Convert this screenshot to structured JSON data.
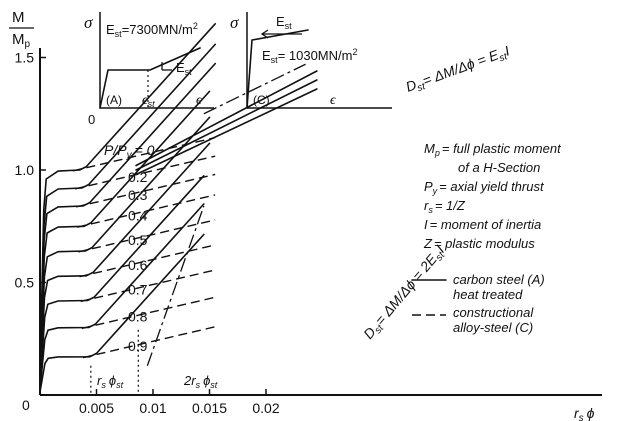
{
  "chart_data": {
    "type": "line",
    "title": "",
    "ylabel_num": "M",
    "ylabel_den": "M",
    "ylabel_den_sub": "p",
    "xlabel": "r",
    "xlabel_sub": "s",
    "xlabel_phi": "ϕ",
    "xlim": [
      0,
      0.025
    ],
    "ylim": [
      0,
      1.6
    ],
    "xticks": [
      0.005,
      0.01,
      0.015,
      0.02
    ],
    "xtick_labels": [
      "0.005",
      "0.01",
      "0.015",
      "0.02"
    ],
    "yticks": [
      0.5,
      1.0,
      1.5
    ],
    "ytick_labels": [
      "0.5",
      "1.0",
      "1.5"
    ],
    "origin_label": "0",
    "load_ratio_prefix": "P/P",
    "load_ratio_sub": "y",
    "load_ratio_eq": "= 0",
    "curve_labels": [
      "0.2",
      "0.3",
      "0.4",
      "0.5",
      "0.6",
      "0.7",
      "0.8",
      "0.9"
    ],
    "series": [
      {
        "p": 0.0,
        "plateau": 1.0,
        "x_sh": 0.0035,
        "xend": 0.0155
      },
      {
        "p": 0.2,
        "plateau": 0.92,
        "x_sh": 0.0037,
        "xend": 0.0155
      },
      {
        "p": 0.3,
        "plateau": 0.84,
        "x_sh": 0.0038,
        "xend": 0.0155
      },
      {
        "p": 0.4,
        "plateau": 0.75,
        "x_sh": 0.0039,
        "xend": 0.015
      },
      {
        "p": 0.5,
        "plateau": 0.64,
        "x_sh": 0.004,
        "xend": 0.015
      },
      {
        "p": 0.6,
        "plateau": 0.53,
        "x_sh": 0.0041,
        "xend": 0.015
      },
      {
        "p": 0.7,
        "plateau": 0.42,
        "x_sh": 0.0042,
        "xend": 0.0145
      },
      {
        "p": 0.8,
        "plateau": 0.3,
        "x_sh": 0.0043,
        "xend": 0.0145
      },
      {
        "p": 0.9,
        "plateau": 0.17,
        "x_sh": 0.0044,
        "xend": 0.0145
      }
    ],
    "hardening_slope_A": 56,
    "hardening_slope_C": 12,
    "dashed_xend": 0.0155,
    "upper_lines": [
      {
        "x0": 0.0085,
        "y0": 1.02,
        "x1": 0.0245,
        "y1": 1.44
      },
      {
        "x0": 0.0085,
        "y0": 1.0,
        "x1": 0.0245,
        "y1": 1.4
      },
      {
        "x0": 0.0085,
        "y0": 0.98,
        "x1": 0.0245,
        "y1": 1.36
      }
    ],
    "ref_lines": {
      "sh": {
        "x": 0.0045,
        "y": 0.13
      },
      "twice_sh": {
        "x": 0.0087,
        "y": 0.29
      }
    },
    "annotations": {
      "dst_upper_pre": "D",
      "dst_upper_sub": "st",
      "dst_upper_rest": "= ΔM/Δϕ = E",
      "dst_upper_sub2": "st",
      "dst_upper_end": "I",
      "dst_lower_pre": "D",
      "dst_lower_sub": "st",
      "dst_lower_rest": "= ΔM/Δϕ = 2E",
      "dst_lower_sub2": "st",
      "dst_lower_end": "I",
      "rs_phist": "r",
      "rs_phist_sub": "s",
      "rs_phist_phi": "ϕ",
      "rs_phist_sub2": "st",
      "two_rs_phist": "2r",
      "two_rs_phist_sub": "s",
      "two_rs_phist_phi": "ϕ",
      "two_rs_phist_sub2": "st"
    },
    "legend_defs": [
      {
        "sym": "M",
        "sub": "p",
        "text": "= full plastic moment"
      },
      {
        "sym": "",
        "sub": "",
        "text": "of a H-Section"
      },
      {
        "sym": "P",
        "sub": "y",
        "text": "= axial yield thrust"
      },
      {
        "sym": "r",
        "sub": "s",
        "text": "= 1/Z"
      },
      {
        "sym": "I",
        "sub": "",
        "text": "= moment of inertia"
      },
      {
        "sym": "Z",
        "sub": "",
        "text": "= plastic modulus"
      }
    ],
    "legend_solid": [
      "carbon steel (A)",
      "heat treated"
    ],
    "legend_dashed": [
      "constructional",
      "alloy-steel (C)"
    ],
    "inset_A": {
      "sigma": "σ",
      "modulus_pre": "E",
      "modulus_sub": "st",
      "modulus_rest": "=7300MN/m",
      "modulus_sup": "2",
      "est_pre": "E",
      "est_sub": "st",
      "tag": "(A)",
      "eps_st_pre": "ϵ",
      "eps_st_sub": "st",
      "eps": "ϵ",
      "zero": "0"
    },
    "inset_C": {
      "sigma": "σ",
      "est_pre": "E",
      "est_sub": "st",
      "modulus_pre": "E",
      "modulus_sub": "st",
      "modulus_rest": "= 1030MN/m",
      "modulus_sup": "2",
      "tag": "(C)",
      "eps": "ϵ"
    }
  }
}
